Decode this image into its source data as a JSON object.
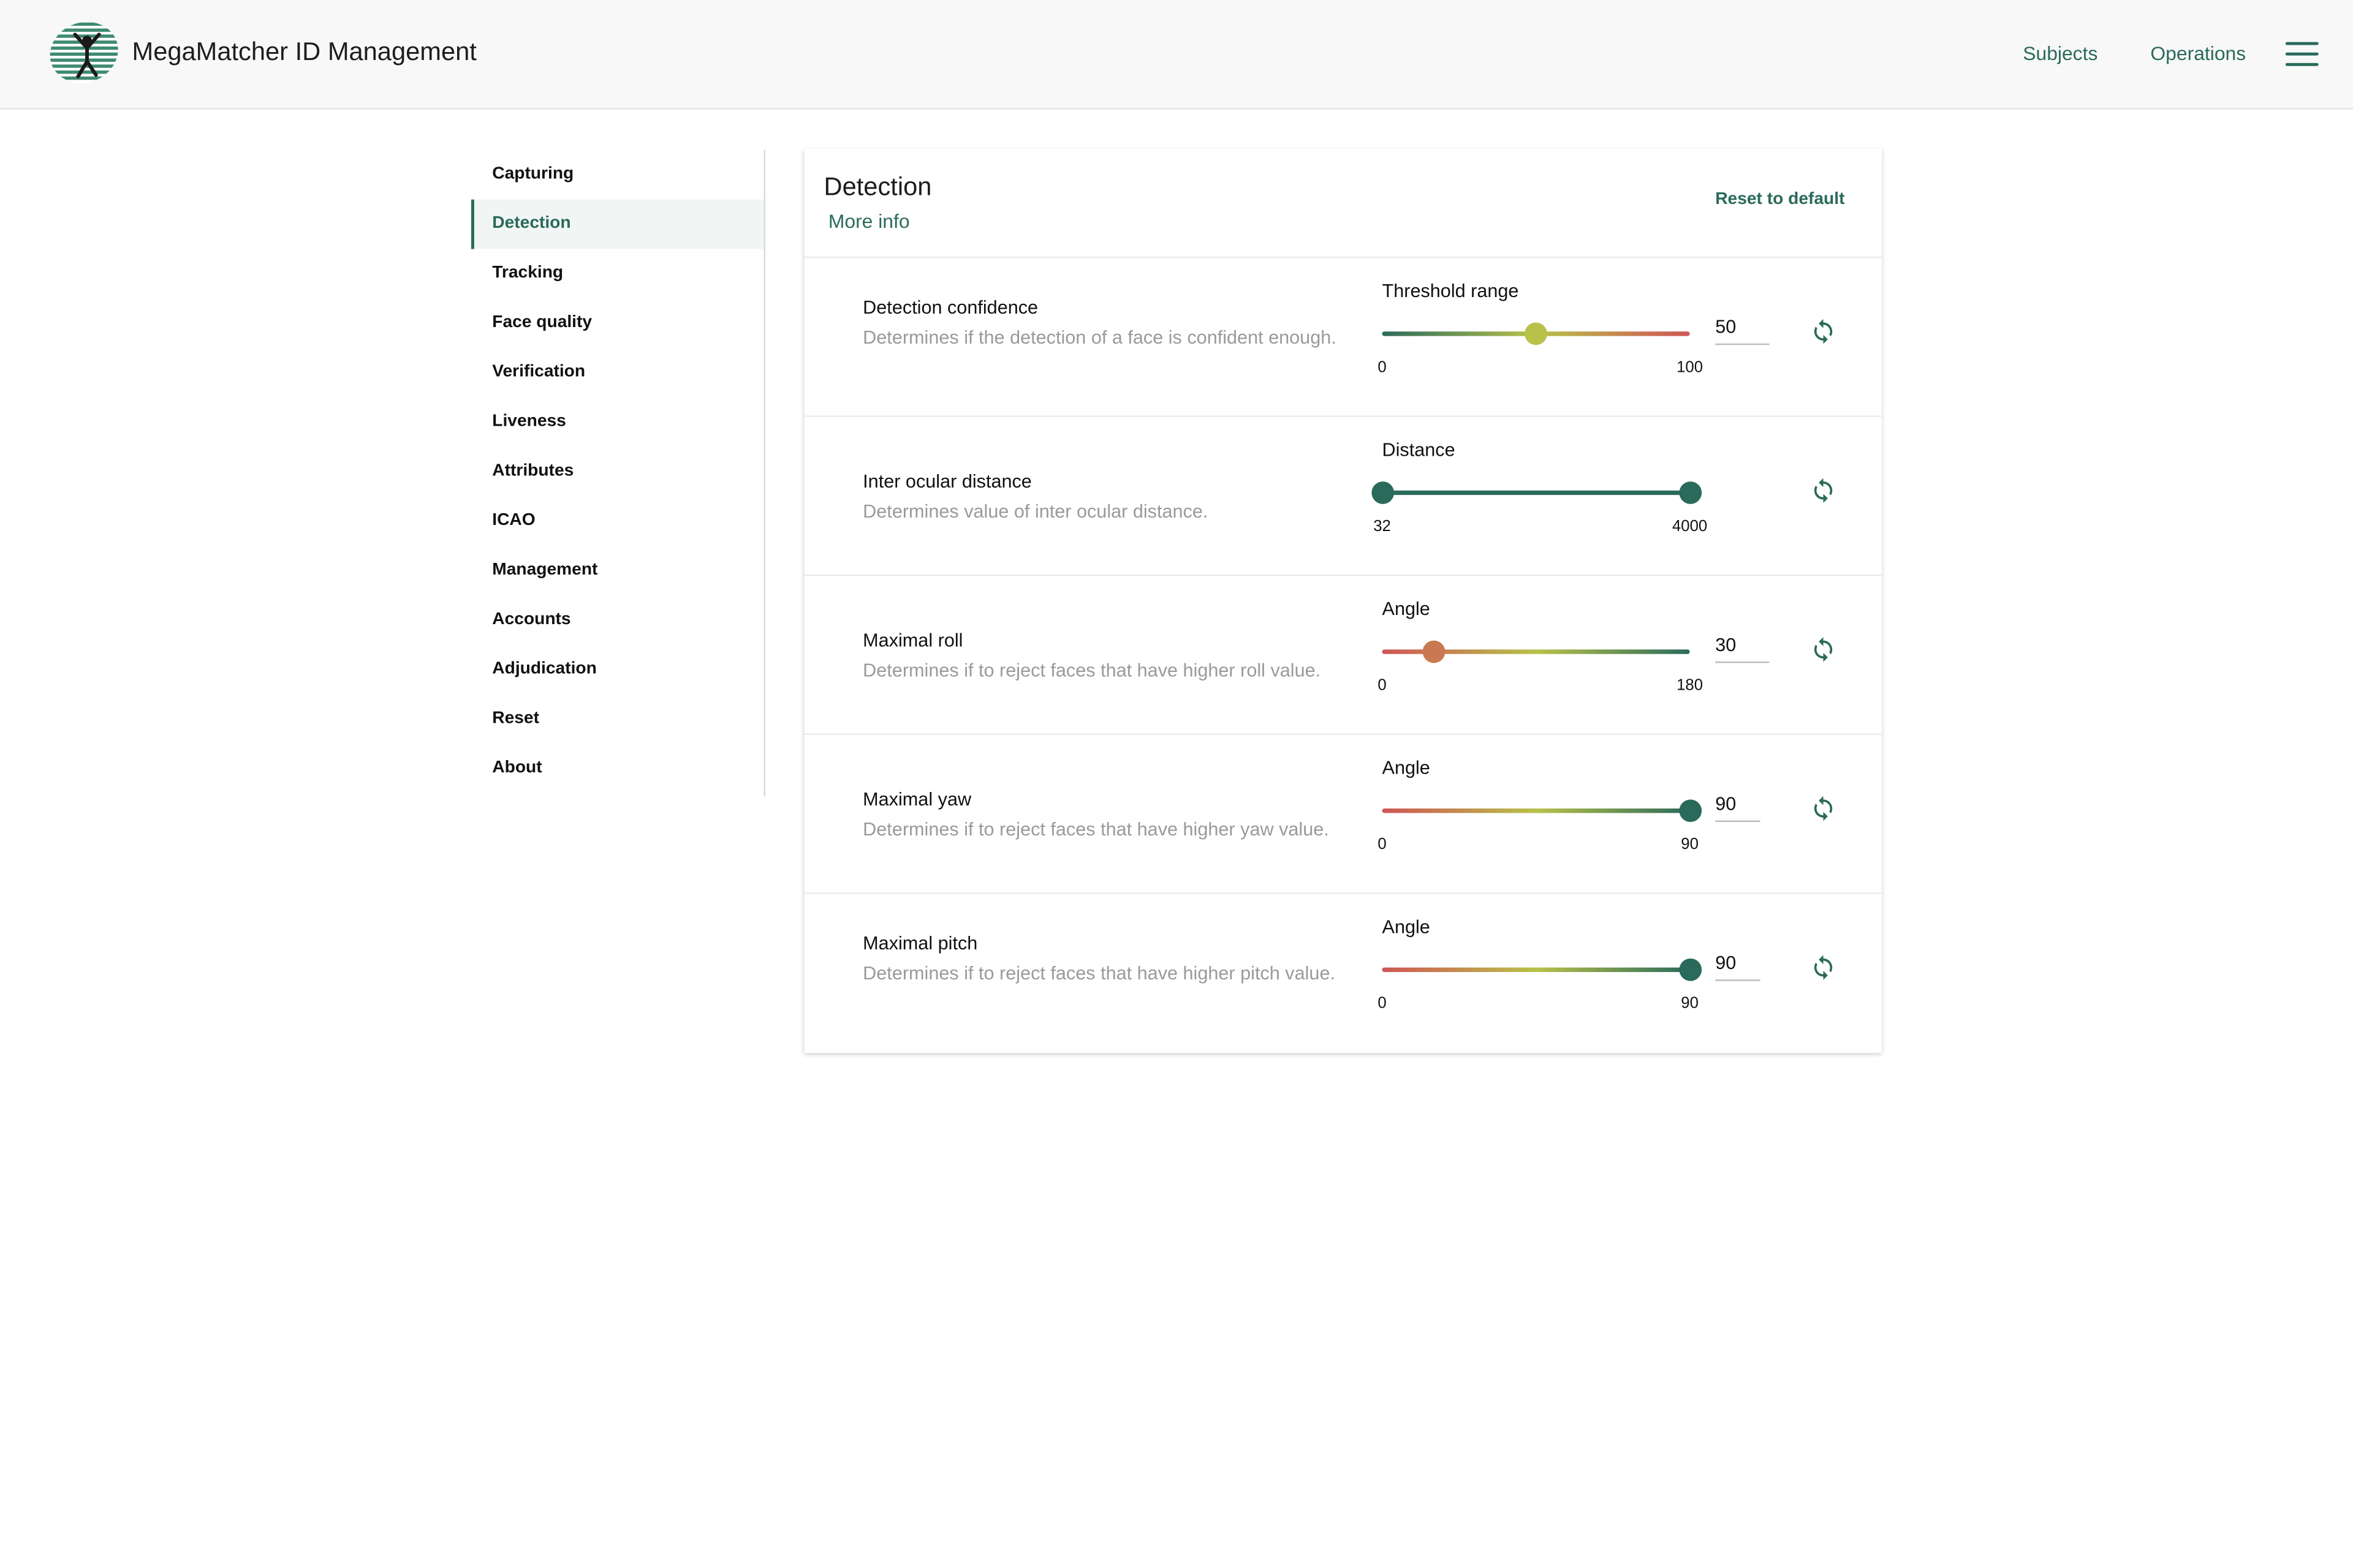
{
  "header": {
    "title": "MegaMatcher ID Management",
    "nav": [
      "Subjects",
      "Operations"
    ],
    "colors": {
      "accent": "#2a6a5a",
      "background": "#f8f8f8"
    }
  },
  "sidebar": {
    "items": [
      {
        "label": "Capturing"
      },
      {
        "label": "Detection",
        "active": true
      },
      {
        "label": "Tracking"
      },
      {
        "label": "Face quality"
      },
      {
        "label": "Verification"
      },
      {
        "label": "Liveness"
      },
      {
        "label": "Attributes"
      },
      {
        "label": "ICAO"
      },
      {
        "label": "Management"
      },
      {
        "label": "Accounts"
      },
      {
        "label": "Adjudication"
      },
      {
        "label": "Reset"
      },
      {
        "label": "About"
      }
    ]
  },
  "panel": {
    "title": "Detection",
    "more_info": "More info",
    "reset_label": "Reset to default"
  },
  "settings": [
    {
      "title": "Detection confidence",
      "description": "Determines if the detection of a face is confident enough.",
      "control_label": "Threshold range",
      "min": 0,
      "max": 100,
      "value": 50,
      "min_label": "0",
      "max_label": "100",
      "value_text": "50",
      "type": "single",
      "gradient": "green-to-red"
    },
    {
      "title": "Inter ocular distance",
      "description": "Determines value of inter ocular distance.",
      "control_label": "Distance",
      "min": 32,
      "max": 4000,
      "range": [
        32,
        4000
      ],
      "min_label": "32",
      "max_label": "4000",
      "type": "range"
    },
    {
      "title": "Maximal roll",
      "description": "Determines if to reject faces that have higher roll value.",
      "control_label": "Angle",
      "min": 0,
      "max": 180,
      "value": 30,
      "min_label": "0",
      "max_label": "180",
      "value_text": "30",
      "type": "single",
      "gradient": "red-to-green"
    },
    {
      "title": "Maximal yaw",
      "description": "Determines if to reject faces that have higher yaw value.",
      "control_label": "Angle",
      "min": 0,
      "max": 90,
      "value": 90,
      "min_label": "0",
      "max_label": "90",
      "value_text": "90",
      "type": "single",
      "gradient": "red-to-green"
    },
    {
      "title": "Maximal pitch",
      "description": "Determines if to reject faces that have higher pitch value.",
      "control_label": "Angle",
      "min": 0,
      "max": 90,
      "value": 90,
      "min_label": "0",
      "max_label": "90",
      "value_text": "90",
      "type": "single",
      "gradient": "red-to-green"
    }
  ]
}
